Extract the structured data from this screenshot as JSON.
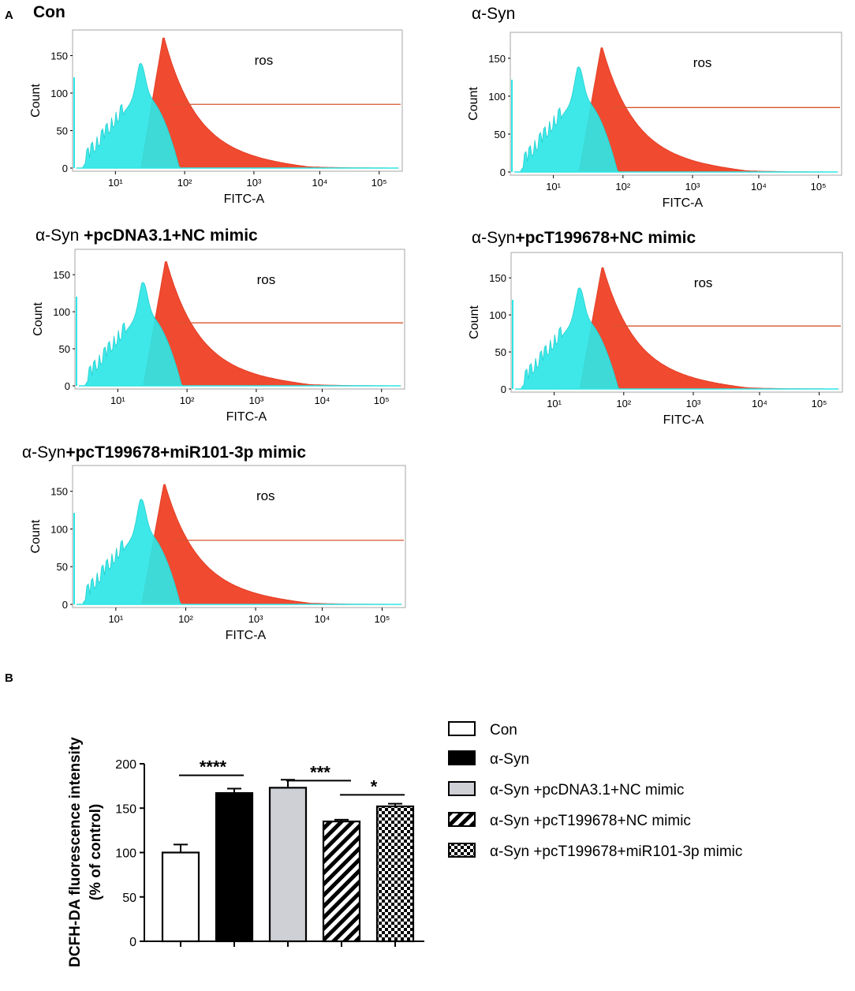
{
  "panel_labels": {
    "a": "A",
    "b": "B"
  },
  "colors": {
    "cyan": "#2ee6e6",
    "red": "#f04a30",
    "overlap": "#26b8b0",
    "frame": "#b5b5b5",
    "gate": "#d9542f"
  },
  "chart_data": [
    {
      "type": "area",
      "panel": "A",
      "id": "con",
      "title": "Con",
      "title_segments": [
        {
          "text": "Con",
          "bold": true
        }
      ],
      "xlabel": "FITC-A",
      "ylabel": "Count",
      "gate_label": "ros",
      "x_scale": "log",
      "x_tick_labels": [
        "10¹",
        "10²",
        "10³",
        "10⁴",
        "10⁵"
      ],
      "x_tick_values": [
        10,
        100,
        1000,
        10000,
        100000
      ],
      "y_ticks": [
        0,
        50,
        100,
        150
      ],
      "ylim": [
        0,
        180
      ],
      "gate_count": 85,
      "cyan_peak": 133,
      "red_peak": 178
    },
    {
      "type": "area",
      "panel": "A",
      "id": "asyn",
      "title": "α-Syn",
      "title_segments": [
        {
          "text": "α-Syn",
          "bold": false
        }
      ],
      "xlabel": "FITC-A",
      "ylabel": "Count",
      "gate_label": "ros",
      "x_scale": "log",
      "x_tick_labels": [
        "10¹",
        "10²",
        "10³",
        "10⁴",
        "10⁵"
      ],
      "x_tick_values": [
        10,
        100,
        1000,
        10000,
        100000
      ],
      "y_ticks": [
        0,
        50,
        100,
        150
      ],
      "ylim": [
        0,
        180
      ],
      "gate_count": 85,
      "cyan_peak": 132,
      "red_peak": 168
    },
    {
      "type": "area",
      "panel": "A",
      "id": "asyn-pcdna-nc",
      "title": "α-Syn +pcDNA3.1+NC mimic",
      "title_segments": [
        {
          "text": "α-Syn ",
          "bold": false
        },
        {
          "text": "+pcDNA3.1+NC mimic",
          "bold": true
        }
      ],
      "xlabel": "FITC-A",
      "ylabel": "Count",
      "gate_label": "ros",
      "x_scale": "log",
      "x_tick_labels": [
        "10¹",
        "10²",
        "10³",
        "10⁴",
        "10⁵"
      ],
      "x_tick_values": [
        10,
        100,
        1000,
        10000,
        100000
      ],
      "y_ticks": [
        0,
        50,
        100,
        150
      ],
      "ylim": [
        0,
        180
      ],
      "gate_count": 85,
      "cyan_peak": 133,
      "red_peak": 172
    },
    {
      "type": "area",
      "panel": "A",
      "id": "asyn-pct-nc",
      "title": "α-Syn+pcT199678+NC mimic",
      "title_segments": [
        {
          "text": "α-Syn",
          "bold": false
        },
        {
          "text": "+pcT199678+NC mimic",
          "bold": true
        }
      ],
      "xlabel": "FITC-A",
      "ylabel": "Count",
      "gate_label": "ros",
      "x_scale": "log",
      "x_tick_labels": [
        "10¹",
        "10²",
        "10³",
        "10⁴",
        "10⁵"
      ],
      "x_tick_values": [
        10,
        100,
        1000,
        10000,
        100000
      ],
      "y_ticks": [
        0,
        50,
        100,
        150
      ],
      "ylim": [
        0,
        180
      ],
      "gate_count": 85,
      "cyan_peak": 130,
      "red_peak": 168
    },
    {
      "type": "area",
      "panel": "A",
      "id": "asyn-pct-mir",
      "title": "α-Syn+pcT199678+miR101-3p mimic",
      "title_segments": [
        {
          "text": "α-Syn",
          "bold": false
        },
        {
          "text": "+pcT199678+miR101-3p mimic",
          "bold": true
        }
      ],
      "xlabel": "FITC-A",
      "ylabel": "Count",
      "gate_label": "ros",
      "x_scale": "log",
      "x_tick_labels": [
        "10¹",
        "10²",
        "10³",
        "10⁴",
        "10⁵"
      ],
      "x_tick_values": [
        10,
        100,
        1000,
        10000,
        100000
      ],
      "y_ticks": [
        0,
        50,
        100,
        150
      ],
      "ylim": [
        0,
        180
      ],
      "gate_count": 85,
      "cyan_peak": 133,
      "red_peak": 163
    },
    {
      "type": "bar",
      "panel": "B",
      "ylabel_line1": "DCFH-DA fluorescence intensity",
      "ylabel_line2": "(% of control)",
      "ylim": [
        0,
        200
      ],
      "y_ticks": [
        0,
        50,
        100,
        150,
        200
      ],
      "categories": [
        "Con",
        "α-Syn",
        "α-Syn +pcDNA3.1+NC mimic",
        "α-Syn +pcT199678+NC mimic",
        "α-Syn +pcT199678+miR101-3p mimic"
      ],
      "values": [
        100,
        167,
        173,
        135,
        152
      ],
      "errors": [
        9,
        5,
        9,
        2,
        3
      ],
      "fills": [
        "white",
        "black",
        "gray",
        "hatch",
        "checker"
      ],
      "significance": [
        {
          "from": 0,
          "to": 1,
          "label": "****",
          "y": 187
        },
        {
          "from": 2,
          "to": 3,
          "label": "***",
          "y": 181
        },
        {
          "from": 3,
          "to": 4,
          "label": "*",
          "y": 165
        }
      ]
    }
  ]
}
